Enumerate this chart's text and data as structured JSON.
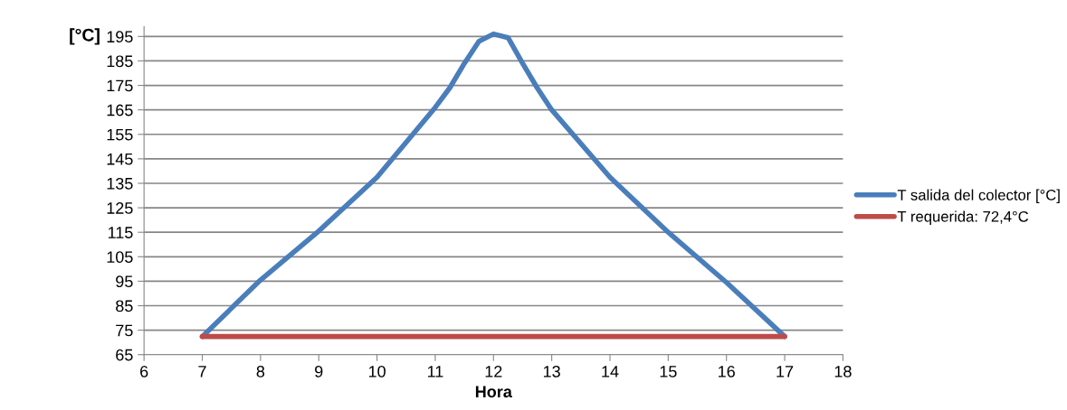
{
  "chart_data": {
    "type": "line",
    "xlabel": "Hora",
    "ylabel": "[°C]",
    "series": [
      {
        "name": "T salida del colector [°C]",
        "color": "#4a7ebb",
        "x": [
          7,
          8,
          9,
          10,
          11,
          11.25,
          11.5,
          11.75,
          12,
          12.25,
          12.5,
          12.75,
          13,
          14,
          15,
          16,
          17
        ],
        "values": [
          72.4,
          95.5,
          115.5,
          137.5,
          166,
          174,
          184,
          193,
          196,
          194.5,
          184,
          174,
          165,
          137.5,
          115,
          94.5,
          72.4
        ]
      },
      {
        "name": "T requerida: 72,4°C",
        "color": "#be4b48",
        "x": [
          7,
          17
        ],
        "values": [
          72.4,
          72.4
        ]
      }
    ],
    "xlim": [
      6,
      18
    ],
    "xticks": [
      6,
      7,
      8,
      9,
      10,
      11,
      12,
      13,
      14,
      15,
      16,
      17,
      18
    ],
    "ylim": [
      65,
      199
    ],
    "yticks": [
      65,
      75,
      85,
      95,
      105,
      115,
      125,
      135,
      145,
      155,
      165,
      175,
      185,
      195
    ],
    "grid": "y",
    "legend": "right",
    "marker": "none",
    "line_style": "solid"
  }
}
